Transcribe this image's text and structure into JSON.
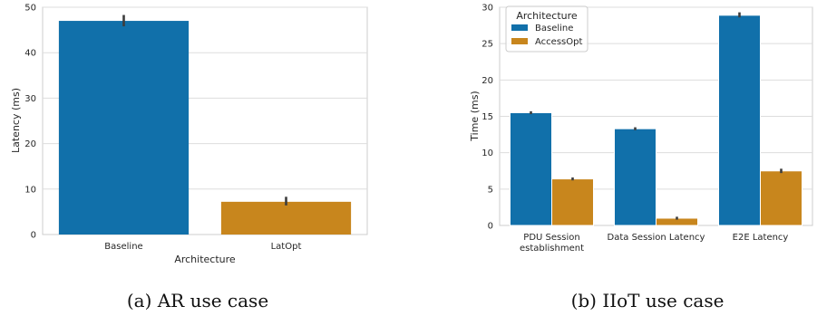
{
  "chart_data": [
    {
      "type": "bar",
      "caption": "(a) AR use case",
      "xlabel": "Architecture",
      "ylabel": "Latency (ms)",
      "categories": [
        "Baseline",
        "LatOpt"
      ],
      "values": [
        47.0,
        7.2
      ],
      "errors": [
        [
          45.8,
          48.3
        ],
        [
          6.4,
          8.3
        ]
      ],
      "colors": [
        "#1170aa",
        "#c8861d"
      ],
      "ylim": [
        0,
        50
      ],
      "yticks": [
        0,
        10,
        20,
        30,
        40,
        50
      ],
      "grid": true
    },
    {
      "type": "bar",
      "caption": "(b) IIoT use case",
      "xlabel": "",
      "ylabel": "Time (ms)",
      "categories": [
        "PDU Session\nestablishment",
        "Data Session Latency",
        "E2E Latency"
      ],
      "series": [
        {
          "name": "Baseline",
          "color": "#1170aa",
          "values": [
            15.5,
            13.3,
            28.9
          ],
          "errors": [
            [
              15.3,
              15.7
            ],
            [
              13.1,
              13.5
            ],
            [
              28.6,
              29.3
            ]
          ]
        },
        {
          "name": "AccessOpt",
          "color": "#c8861d",
          "values": [
            6.4,
            1.0,
            7.5
          ],
          "errors": [
            [
              6.2,
              6.6
            ],
            [
              0.8,
              1.2
            ],
            [
              7.2,
              7.8
            ]
          ]
        }
      ],
      "legend": {
        "title": "Architecture",
        "position": "top-left"
      },
      "ylim": [
        0,
        30
      ],
      "yticks": [
        0,
        5,
        10,
        15,
        20,
        25,
        30
      ],
      "grid": true
    }
  ]
}
